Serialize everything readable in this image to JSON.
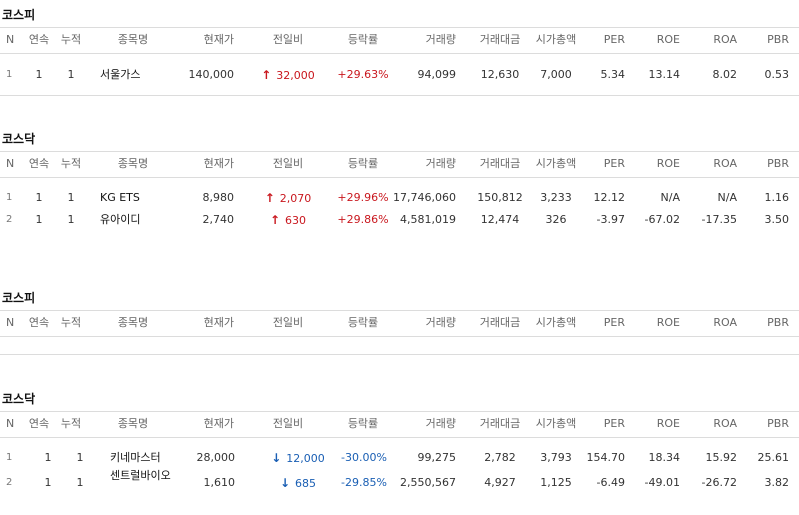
{
  "columns": [
    "N",
    "연속",
    "누적",
    "종목명",
    "현재가",
    "전일비",
    "등락률",
    "거래량",
    "거래대금",
    "시가총액",
    "PER",
    "ROE",
    "ROA",
    "PBR"
  ],
  "sections": [
    {
      "title": "코스피",
      "rows": [
        {
          "n": "1",
          "streak": "1",
          "cumulative": "1",
          "name": "서울가스",
          "price": "140,000",
          "direction": "up",
          "arrow_icon": "up-arrow-icon",
          "change": "32,000",
          "rate": "+29.63%",
          "volume": "94,099",
          "amount": "12,630",
          "market_cap": "7,000",
          "per": "5.34",
          "roe": "13.14",
          "roa": "8.02",
          "pbr": "0.53"
        }
      ]
    },
    {
      "title": "코스닥",
      "rows": [
        {
          "n": "1",
          "streak": "1",
          "cumulative": "1",
          "name": "KG ETS",
          "price": "8,980",
          "direction": "up",
          "arrow_icon": "up-arrow-icon",
          "change": "2,070",
          "rate": "+29.96%",
          "volume": "17,746,060",
          "amount": "150,812",
          "market_cap": "3,233",
          "per": "12.12",
          "roe": "N/A",
          "roa": "N/A",
          "pbr": "1.16"
        },
        {
          "n": "2",
          "streak": "1",
          "cumulative": "1",
          "name": "유아이디",
          "price": "2,740",
          "direction": "up",
          "arrow_icon": "up-arrow-icon",
          "change": "630",
          "rate": "+29.86%",
          "volume": "4,581,019",
          "amount": "12,474",
          "market_cap": "326",
          "per": "-3.97",
          "roe": "-67.02",
          "roa": "-17.35",
          "pbr": "3.50"
        }
      ]
    },
    {
      "title": "코스피",
      "rows": []
    },
    {
      "title": "코스닥",
      "rows": [
        {
          "n": "1",
          "streak": "1",
          "cumulative": "1",
          "name": "키네마스터",
          "price": "28,000",
          "direction": "down",
          "arrow_icon": "down-arrow-icon",
          "change": "12,000",
          "rate": "-30.00%",
          "volume": "99,275",
          "amount": "2,782",
          "market_cap": "3,793",
          "per": "154.70",
          "roe": "18.34",
          "roa": "15.92",
          "pbr": "25.61"
        },
        {
          "n": "2",
          "streak": "1",
          "cumulative": "1",
          "name": "센트럴바이오",
          "price": "1,610",
          "direction": "down",
          "arrow_icon": "down-arrow-icon",
          "change": "685",
          "rate": "-29.85%",
          "volume": "2,550,567",
          "amount": "4,927",
          "market_cap": "1,125",
          "per": "-6.49",
          "roe": "-49.01",
          "roa": "-26.72",
          "pbr": "3.82"
        }
      ]
    }
  ],
  "colors": {
    "up": "#c9171e",
    "down": "#1a5fb4",
    "border": "#dcdcdc"
  }
}
